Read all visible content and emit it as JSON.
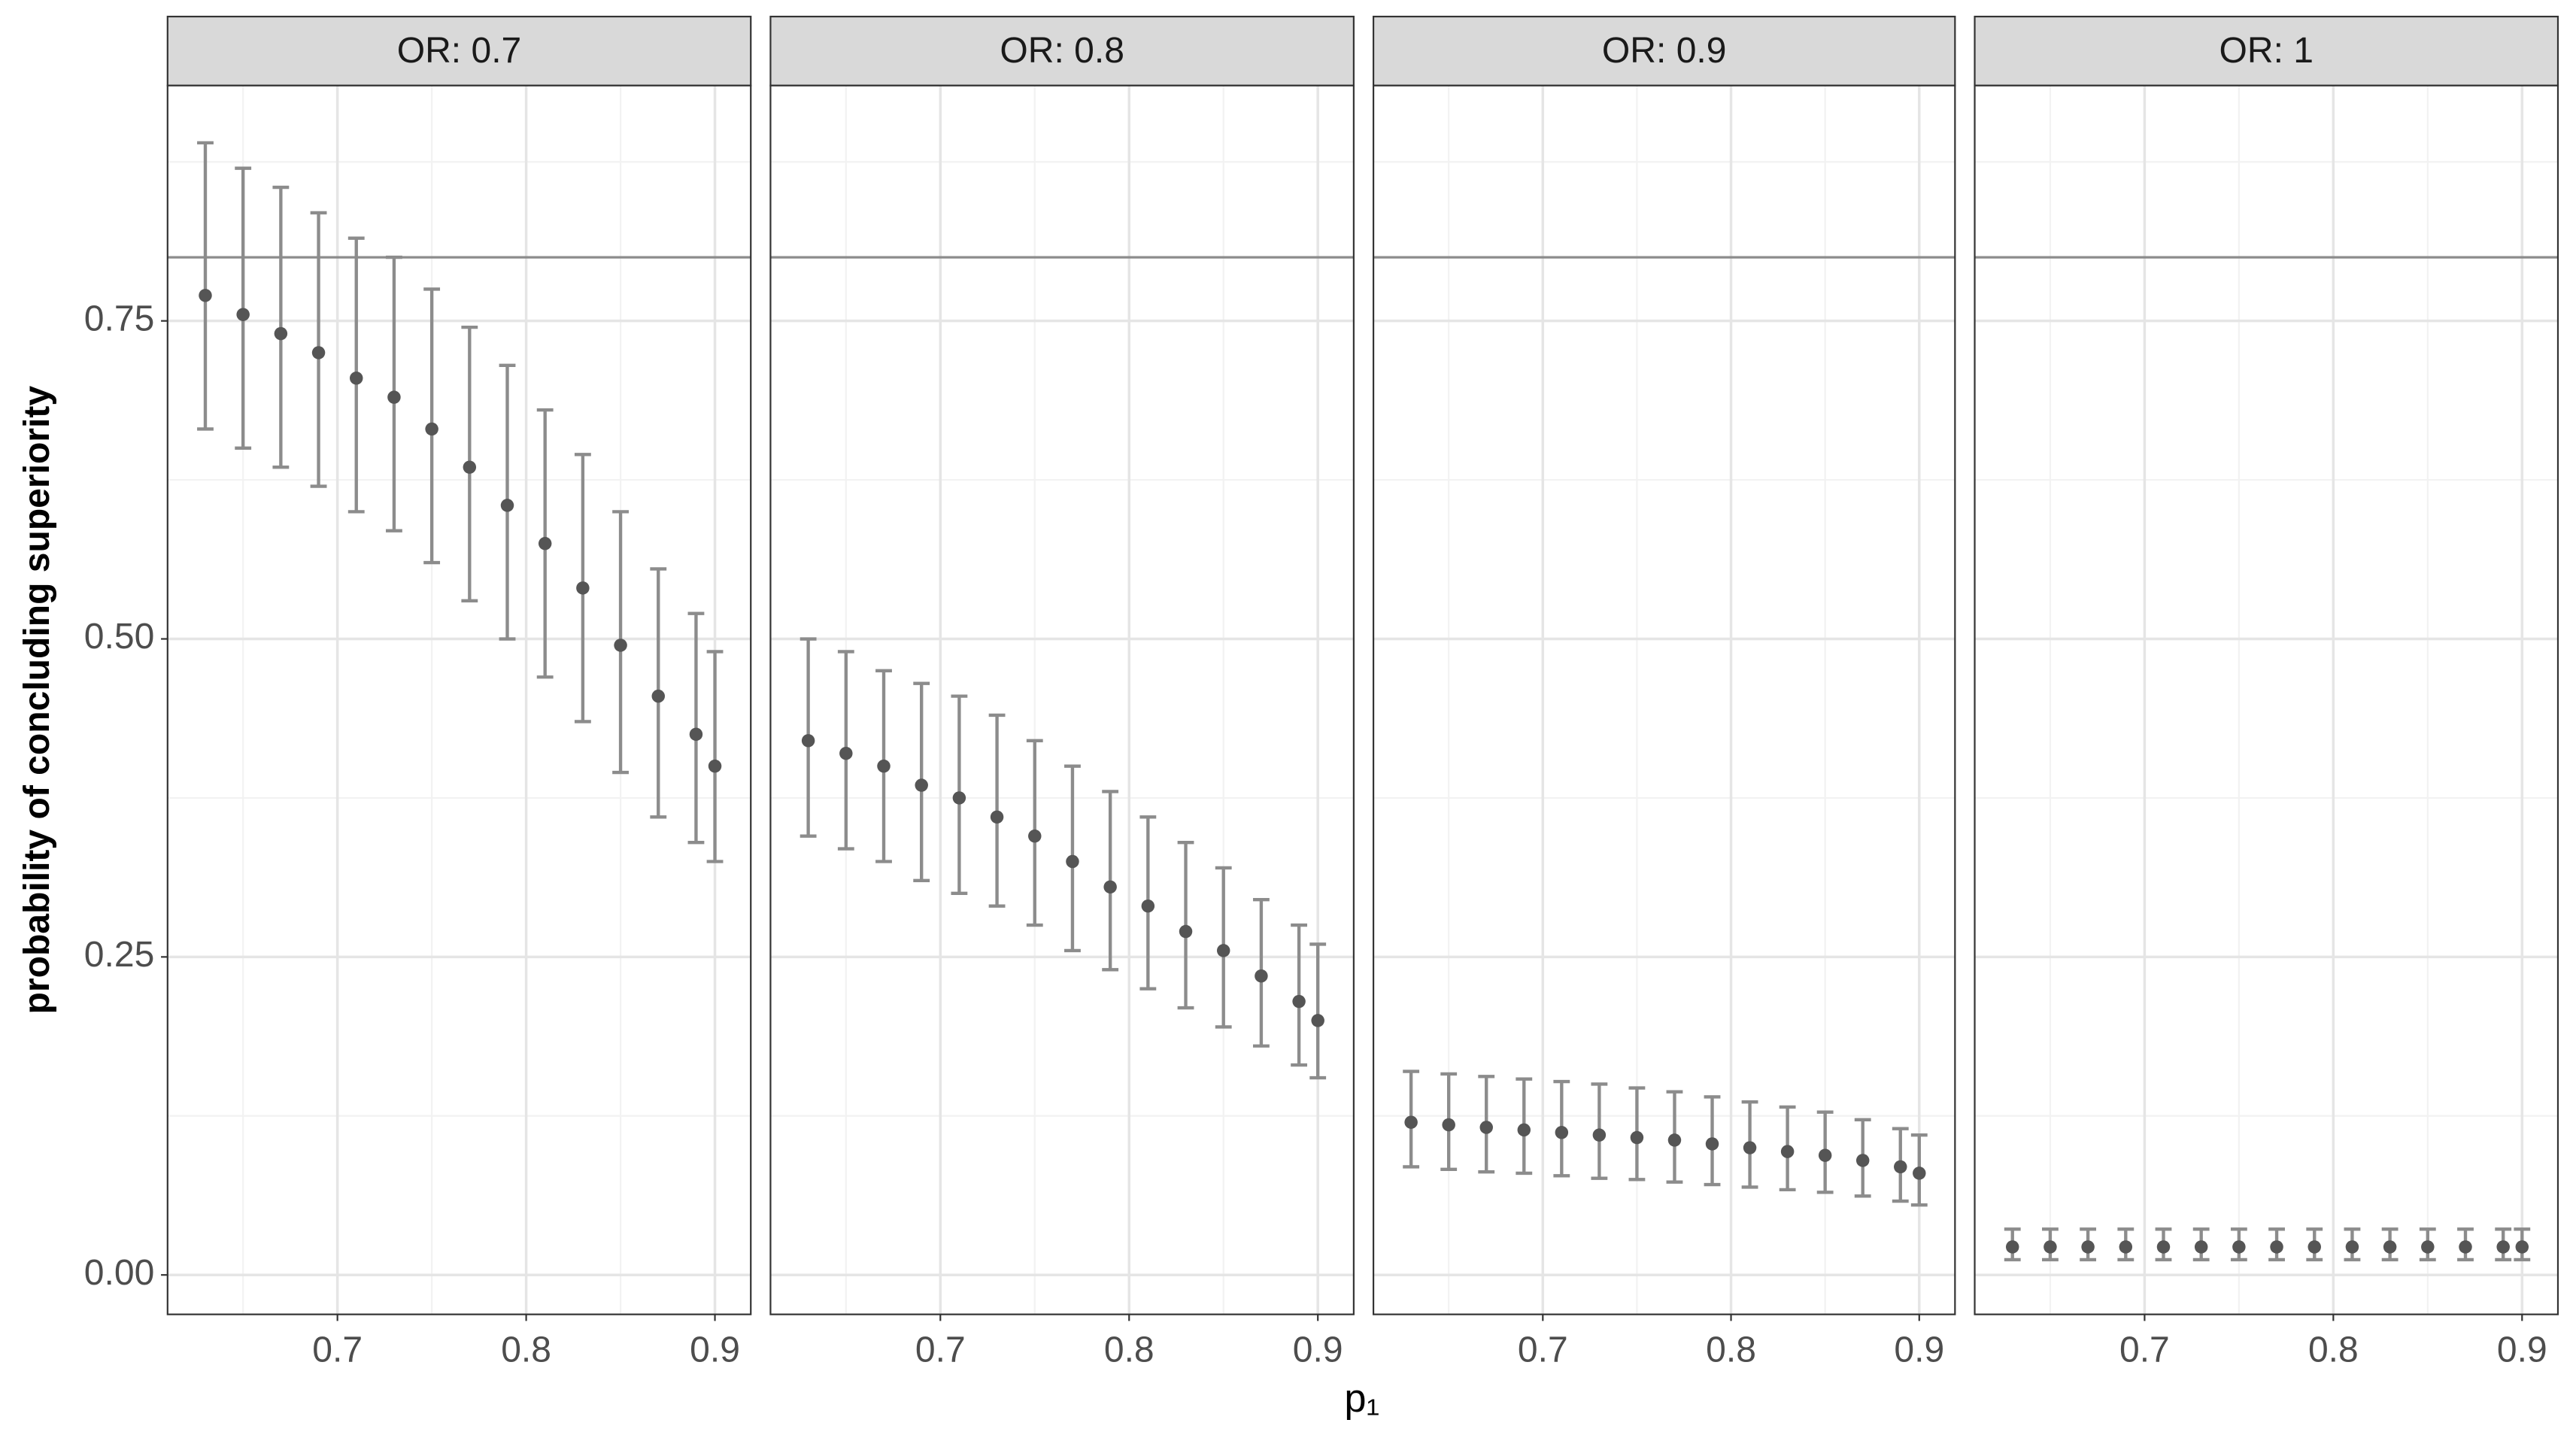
{
  "shared": {
    "ylabel": "probability of concluding superiority",
    "xlabel": "p₁"
  },
  "chart_data": [
    {
      "type": "scatter",
      "title": "OR: 0.7",
      "point_color": "#555555",
      "error_color": "#8c8c8c",
      "hline": 0.8,
      "hline_color": "#8c8c8c",
      "grid": true,
      "xlim": [
        0.61,
        0.919
      ],
      "ylim": [
        -0.031,
        0.935
      ],
      "xticks": [
        0.7,
        0.8,
        0.9
      ],
      "minor_xticks": [
        0.65,
        0.75,
        0.85
      ],
      "yticks": [
        {
          "value": 0,
          "label": "0.00"
        },
        {
          "value": 0.25,
          "label": "0.25"
        },
        {
          "value": 0.5,
          "label": "0.50"
        },
        {
          "value": 0.75,
          "label": "0.75"
        }
      ],
      "minor_yticks": [
        0.125,
        0.375,
        0.625,
        0.875
      ],
      "x": [
        0.63,
        0.65,
        0.67,
        0.69,
        0.71,
        0.73,
        0.75,
        0.77,
        0.79,
        0.81,
        0.83,
        0.85,
        0.87,
        0.89,
        0.9
      ],
      "values": [
        0.77,
        0.755,
        0.74,
        0.725,
        0.705,
        0.69,
        0.665,
        0.635,
        0.605,
        0.575,
        0.54,
        0.495,
        0.455,
        0.425,
        0.4
      ],
      "lower": [
        0.665,
        0.65,
        0.635,
        0.62,
        0.6,
        0.585,
        0.56,
        0.53,
        0.5,
        0.47,
        0.435,
        0.395,
        0.36,
        0.34,
        0.325
      ],
      "upper": [
        0.89,
        0.87,
        0.855,
        0.835,
        0.815,
        0.8,
        0.775,
        0.745,
        0.715,
        0.68,
        0.645,
        0.6,
        0.555,
        0.52,
        0.49
      ]
    },
    {
      "type": "scatter",
      "title": "OR: 0.8",
      "point_color": "#555555",
      "error_color": "#8c8c8c",
      "hline": 0.8,
      "hline_color": "#8c8c8c",
      "grid": true,
      "xlim": [
        0.61,
        0.919
      ],
      "ylim": [
        -0.031,
        0.935
      ],
      "xticks": [
        0.7,
        0.8,
        0.9
      ],
      "minor_xticks": [
        0.65,
        0.75,
        0.85
      ],
      "yticks": [
        {
          "value": 0,
          "label": "0.00"
        },
        {
          "value": 0.25,
          "label": "0.25"
        },
        {
          "value": 0.5,
          "label": "0.50"
        },
        {
          "value": 0.75,
          "label": "0.75"
        }
      ],
      "minor_yticks": [
        0.125,
        0.375,
        0.625,
        0.875
      ],
      "x": [
        0.63,
        0.65,
        0.67,
        0.69,
        0.71,
        0.73,
        0.75,
        0.77,
        0.79,
        0.81,
        0.83,
        0.85,
        0.87,
        0.89,
        0.9
      ],
      "values": [
        0.42,
        0.41,
        0.4,
        0.385,
        0.375,
        0.36,
        0.345,
        0.325,
        0.305,
        0.29,
        0.27,
        0.255,
        0.235,
        0.215,
        0.2
      ],
      "lower": [
        0.345,
        0.335,
        0.325,
        0.31,
        0.3,
        0.29,
        0.275,
        0.255,
        0.24,
        0.225,
        0.21,
        0.195,
        0.18,
        0.165,
        0.155
      ],
      "upper": [
        0.5,
        0.49,
        0.475,
        0.465,
        0.455,
        0.44,
        0.42,
        0.4,
        0.38,
        0.36,
        0.34,
        0.32,
        0.295,
        0.275,
        0.26
      ]
    },
    {
      "type": "scatter",
      "title": "OR: 0.9",
      "point_color": "#555555",
      "error_color": "#8c8c8c",
      "hline": 0.8,
      "hline_color": "#8c8c8c",
      "grid": true,
      "xlim": [
        0.61,
        0.919
      ],
      "ylim": [
        -0.031,
        0.935
      ],
      "xticks": [
        0.7,
        0.8,
        0.9
      ],
      "minor_xticks": [
        0.65,
        0.75,
        0.85
      ],
      "yticks": [
        {
          "value": 0,
          "label": "0.00"
        },
        {
          "value": 0.25,
          "label": "0.25"
        },
        {
          "value": 0.5,
          "label": "0.50"
        },
        {
          "value": 0.75,
          "label": "0.75"
        }
      ],
      "minor_yticks": [
        0.125,
        0.375,
        0.625,
        0.875
      ],
      "x": [
        0.63,
        0.65,
        0.67,
        0.69,
        0.71,
        0.73,
        0.75,
        0.77,
        0.79,
        0.81,
        0.83,
        0.85,
        0.87,
        0.89,
        0.9
      ],
      "values": [
        0.12,
        0.118,
        0.116,
        0.114,
        0.112,
        0.11,
        0.108,
        0.106,
        0.103,
        0.1,
        0.097,
        0.094,
        0.09,
        0.085,
        0.08
      ],
      "lower": [
        0.085,
        0.083,
        0.081,
        0.08,
        0.078,
        0.076,
        0.075,
        0.073,
        0.071,
        0.069,
        0.067,
        0.065,
        0.062,
        0.058,
        0.055
      ],
      "upper": [
        0.16,
        0.158,
        0.156,
        0.154,
        0.152,
        0.15,
        0.147,
        0.144,
        0.14,
        0.136,
        0.132,
        0.128,
        0.122,
        0.115,
        0.11
      ]
    },
    {
      "type": "scatter",
      "title": "OR: 1",
      "point_color": "#555555",
      "error_color": "#8c8c8c",
      "hline": 0.8,
      "hline_color": "#8c8c8c",
      "grid": true,
      "xlim": [
        0.61,
        0.919
      ],
      "ylim": [
        -0.031,
        0.935
      ],
      "xticks": [
        0.7,
        0.8,
        0.9
      ],
      "minor_xticks": [
        0.65,
        0.75,
        0.85
      ],
      "yticks": [
        {
          "value": 0,
          "label": "0.00"
        },
        {
          "value": 0.25,
          "label": "0.25"
        },
        {
          "value": 0.5,
          "label": "0.50"
        },
        {
          "value": 0.75,
          "label": "0.75"
        }
      ],
      "minor_yticks": [
        0.125,
        0.375,
        0.625,
        0.875
      ],
      "x": [
        0.63,
        0.65,
        0.67,
        0.69,
        0.71,
        0.73,
        0.75,
        0.77,
        0.79,
        0.81,
        0.83,
        0.85,
        0.87,
        0.89,
        0.9
      ],
      "values": [
        0.022,
        0.022,
        0.022,
        0.022,
        0.022,
        0.022,
        0.022,
        0.022,
        0.022,
        0.022,
        0.022,
        0.022,
        0.022,
        0.022,
        0.022
      ],
      "lower": [
        0.012,
        0.012,
        0.012,
        0.012,
        0.012,
        0.012,
        0.012,
        0.012,
        0.012,
        0.012,
        0.012,
        0.012,
        0.012,
        0.012,
        0.012
      ],
      "upper": [
        0.036,
        0.036,
        0.036,
        0.036,
        0.036,
        0.036,
        0.036,
        0.036,
        0.036,
        0.036,
        0.036,
        0.036,
        0.036,
        0.036,
        0.036
      ]
    }
  ]
}
